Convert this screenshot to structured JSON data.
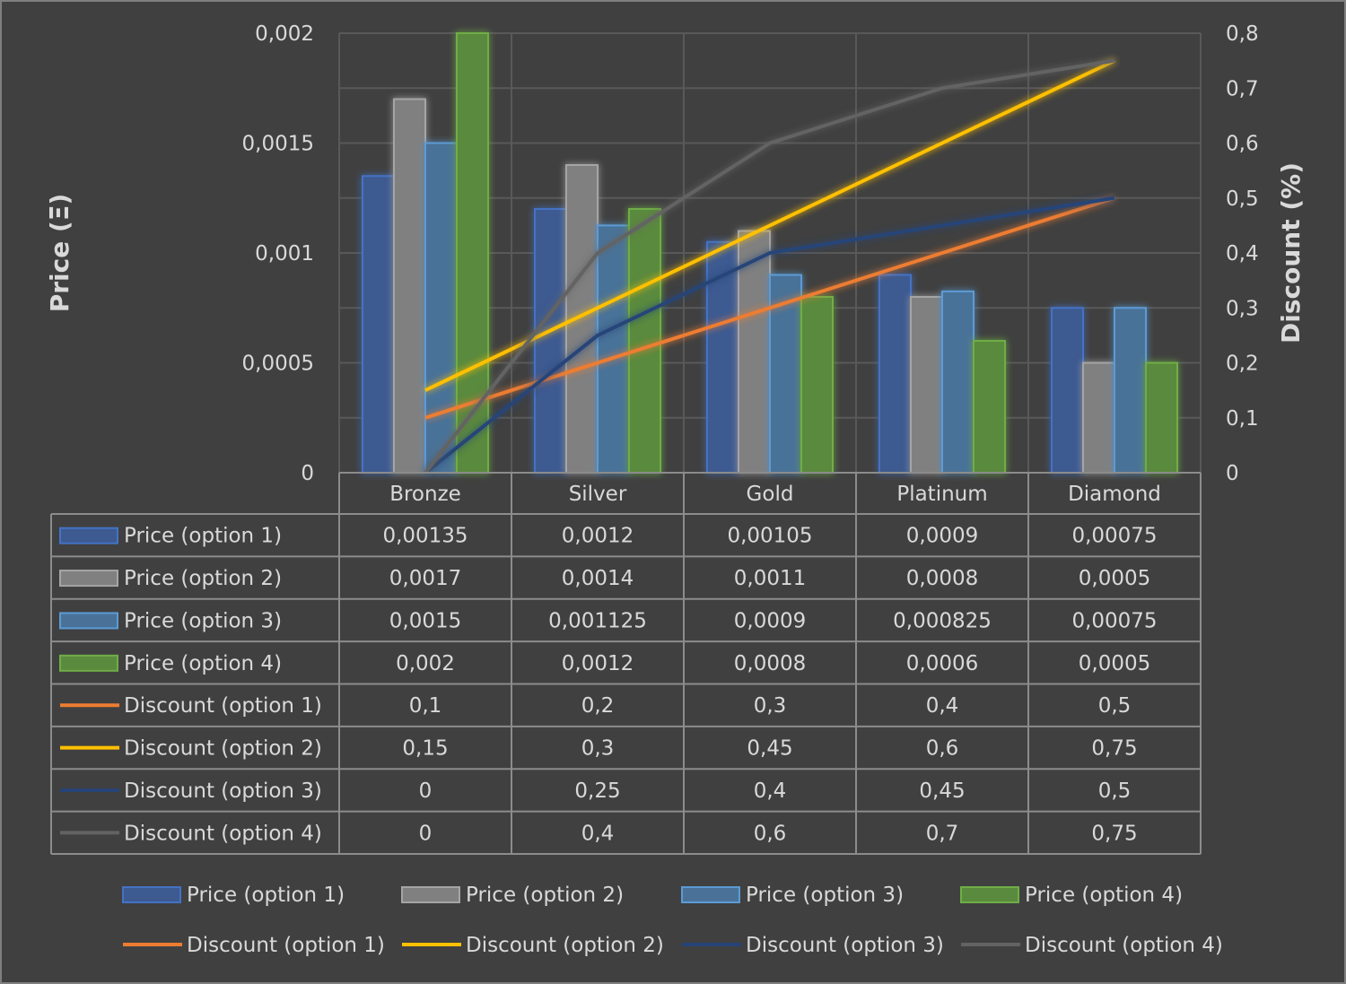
{
  "chart_data": {
    "type": "bar+line",
    "categories": [
      "Bronze",
      "Silver",
      "Gold",
      "Platinum",
      "Diamond"
    ],
    "ylabel": "Price (Ξ)",
    "y2label": "Discount (%)",
    "ylim": [
      0,
      0.002
    ],
    "y2lim": [
      0,
      0.8
    ],
    "yticks": [
      "0",
      "0,0005",
      "0,001",
      "0,0015",
      "0,002"
    ],
    "y2ticks": [
      "0",
      "0,1",
      "0,2",
      "0,3",
      "0,4",
      "0,5",
      "0,6",
      "0,7",
      "0,8"
    ],
    "grid": true,
    "legend": "bottom",
    "data_table": true,
    "series": [
      {
        "name": "Price (option 1)",
        "type": "bar",
        "axis": "left",
        "color": "#4472C4",
        "values": [
          0.00135,
          0.0012,
          0.00105,
          0.0009,
          0.00075
        ],
        "labels": [
          "0,00135",
          "0,0012",
          "0,00105",
          "0,0009",
          "0,00075"
        ]
      },
      {
        "name": "Price (option 2)",
        "type": "bar",
        "axis": "left",
        "color": "#A5A5A5",
        "values": [
          0.0017,
          0.0014,
          0.0011,
          0.0008,
          0.0005
        ],
        "labels": [
          "0,0017",
          "0,0014",
          "0,0011",
          "0,0008",
          "0,0005"
        ]
      },
      {
        "name": "Price (option 3)",
        "type": "bar",
        "axis": "left",
        "color": "#5B9BD5",
        "values": [
          0.0015,
          0.001125,
          0.0009,
          0.000825,
          0.00075
        ],
        "labels": [
          "0,0015",
          "0,001125",
          "0,0009",
          "0,000825",
          "0,00075"
        ]
      },
      {
        "name": "Price (option 4)",
        "type": "bar",
        "axis": "left",
        "color": "#70AD47",
        "values": [
          0.002,
          0.0012,
          0.0008,
          0.0006,
          0.0005
        ],
        "labels": [
          "0,002",
          "0,0012",
          "0,0008",
          "0,0006",
          "0,0005"
        ]
      },
      {
        "name": "Discount (option 1)",
        "type": "line",
        "axis": "right",
        "color": "#ED7D31",
        "values": [
          0.1,
          0.2,
          0.3,
          0.4,
          0.5
        ],
        "labels": [
          "0,1",
          "0,2",
          "0,3",
          "0,4",
          "0,5"
        ]
      },
      {
        "name": "Discount (option 2)",
        "type": "line",
        "axis": "right",
        "color": "#FFC000",
        "values": [
          0.15,
          0.3,
          0.45,
          0.6,
          0.75
        ],
        "labels": [
          "0,15",
          "0,3",
          "0,45",
          "0,6",
          "0,75"
        ]
      },
      {
        "name": "Discount (option 3)",
        "type": "line",
        "axis": "right",
        "color": "#264478",
        "values": [
          0,
          0.25,
          0.4,
          0.45,
          0.5
        ],
        "labels": [
          "0",
          "0,25",
          "0,4",
          "0,45",
          "0,5"
        ]
      },
      {
        "name": "Discount (option 4)",
        "type": "line",
        "axis": "right",
        "color": "#636363",
        "values": [
          0,
          0.4,
          0.6,
          0.7,
          0.75
        ],
        "labels": [
          "0",
          "0,4",
          "0,6",
          "0,7",
          "0,75"
        ]
      }
    ]
  }
}
